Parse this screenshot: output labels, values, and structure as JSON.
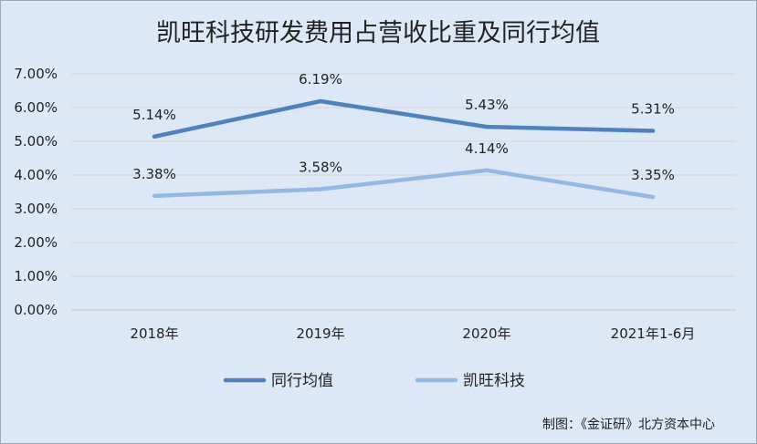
{
  "chart_data": {
    "type": "line",
    "title": "凯旺科技研发费用占营收比重及同行均值",
    "categories": [
      "2018年",
      "2019年",
      "2020年",
      "2021年1-6月"
    ],
    "ylim": [
      0,
      7
    ],
    "y_ticks": [
      "0.00%",
      "1.00%",
      "2.00%",
      "3.00%",
      "4.00%",
      "5.00%",
      "6.00%",
      "7.00%"
    ],
    "grid": true,
    "legend_position": "bottom",
    "series": [
      {
        "name": "同行均值",
        "color": "#4f81bd",
        "values": [
          5.14,
          6.19,
          5.43,
          5.31
        ],
        "labels": [
          "5.14%",
          "6.19%",
          "5.43%",
          "5.31%"
        ]
      },
      {
        "name": "凯旺科技",
        "color": "#95b8e3",
        "values": [
          3.38,
          3.58,
          4.14,
          3.35
        ],
        "labels": [
          "3.38%",
          "3.58%",
          "4.14%",
          "3.35%"
        ]
      }
    ]
  },
  "footer": {
    "credit": "制图：《金证研》北方资本中心"
  }
}
